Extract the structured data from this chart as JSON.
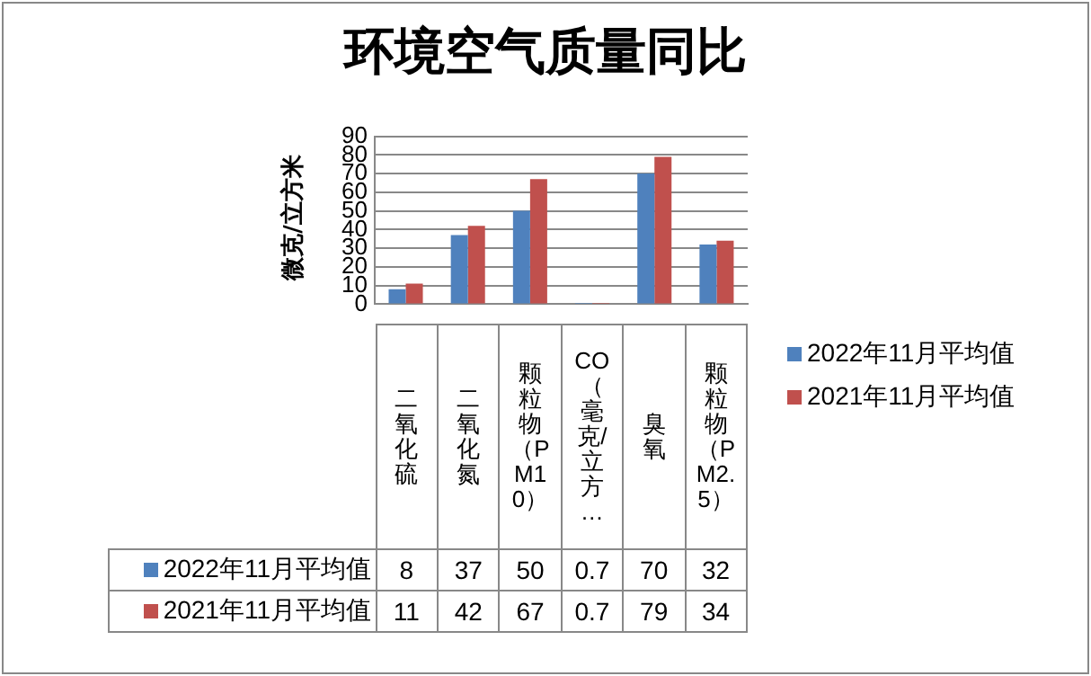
{
  "chart_data": {
    "type": "bar",
    "title": "环境空气质量同比",
    "ylabel": "微克/立方米",
    "categories": [
      "二氧化硫",
      "二氧化氮",
      "颗粒物（PM10）",
      "CO（毫克/立方…",
      "臭氧",
      "颗粒物（PM2.5）"
    ],
    "series": [
      {
        "name": "2022年11月平均值",
        "color": "#4f81bd",
        "values": [
          8,
          37,
          50,
          0.7,
          70,
          32
        ]
      },
      {
        "name": "2021年11月平均值",
        "color": "#c0504d",
        "values": [
          11,
          42,
          67,
          0.7,
          79,
          34
        ]
      }
    ],
    "ylim": [
      0,
      90
    ],
    "yticks": [
      0,
      10,
      20,
      30,
      40,
      50,
      60,
      70,
      80,
      90
    ],
    "grid": "y",
    "legend": "right",
    "data_labels": true
  }
}
